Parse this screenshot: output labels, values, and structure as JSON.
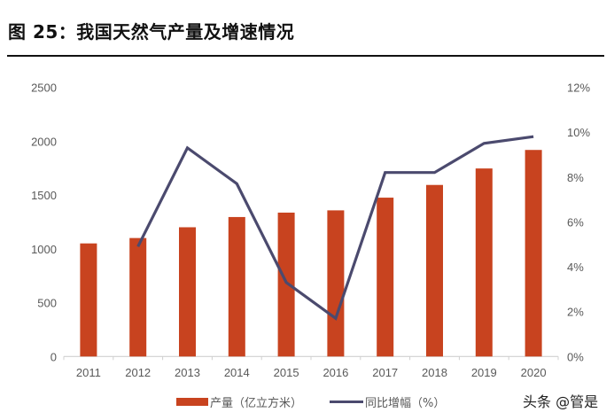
{
  "title": "图 25：我国天然气产量及增速情况",
  "watermark": "头条 @管是",
  "chart_data": {
    "type": "bar+line",
    "title": "图 25：我国天然气产量及增速情况",
    "categories": [
      "2011",
      "2012",
      "2013",
      "2014",
      "2015",
      "2016",
      "2017",
      "2018",
      "2019",
      "2020"
    ],
    "series": [
      {
        "name": "产量（亿立方米）",
        "type": "bar",
        "axis": "left",
        "color": "#C8431F",
        "values": [
          1050,
          1100,
          1200,
          1295,
          1336,
          1357,
          1475,
          1593,
          1746,
          1918
        ]
      },
      {
        "name": "同比增幅（%）",
        "type": "line",
        "axis": "right",
        "color": "#4B4A6E",
        "values": [
          null,
          4.9,
          9.3,
          7.7,
          3.3,
          1.7,
          8.2,
          8.2,
          9.5,
          9.8
        ]
      }
    ],
    "left_axis": {
      "ylim": [
        0,
        2500
      ],
      "ticks": [
        "0",
        "500",
        "1000",
        "1500",
        "2000",
        "2500"
      ]
    },
    "right_axis": {
      "ylim": [
        0,
        12
      ],
      "ticks": [
        "0%",
        "2%",
        "4%",
        "6%",
        "8%",
        "10%",
        "12%"
      ]
    },
    "grid": false,
    "legend_position": "bottom"
  }
}
